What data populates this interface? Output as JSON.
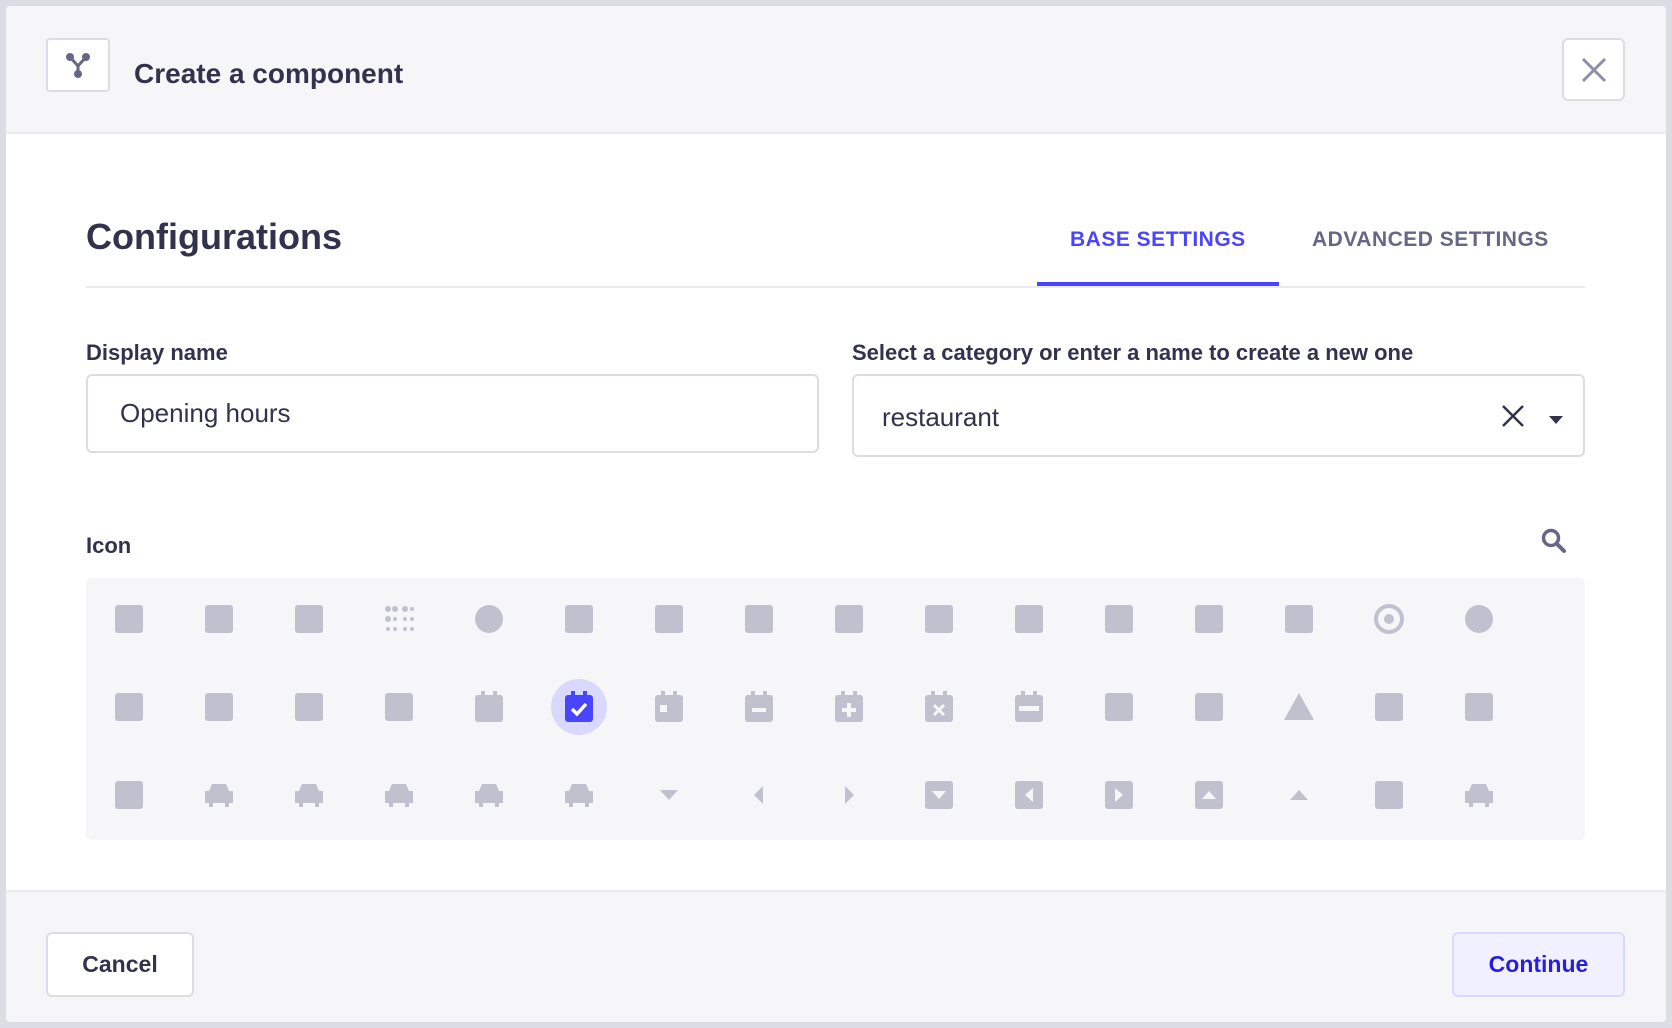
{
  "header": {
    "title": "Create a component",
    "logo_icon": "component-icon",
    "close_icon": "close-icon"
  },
  "main": {
    "section_title": "Configurations",
    "tabs": [
      {
        "label": "BASE SETTINGS",
        "active": true
      },
      {
        "label": "ADVANCED SETTINGS",
        "active": false
      }
    ],
    "display_name": {
      "label": "Display name",
      "value": "Opening hours"
    },
    "category": {
      "label": "Select a category or enter a name to create a new one",
      "value": "restaurant"
    },
    "icon_picker": {
      "label": "Icon",
      "selected": "calendar-check",
      "icons": [
        [
          "box",
          "box-open",
          "boxes",
          "braille",
          "brain",
          "bread-slice",
          "briefcase",
          "briefcase-medical",
          "broadcast-tower",
          "broom",
          "brush",
          "bug",
          "building",
          "bullhorn",
          "bullseye",
          "burn"
        ],
        [
          "bus",
          "bus-alt",
          "business-time",
          "calculator",
          "calendar",
          "calendar-check",
          "calendar-day",
          "calendar-minus",
          "calendar-plus",
          "calendar-times",
          "calendar-week",
          "camera",
          "camera-retro",
          "campground",
          "candy-cane",
          "cannabis"
        ],
        [
          "capsules",
          "car",
          "car-alt",
          "car-battery",
          "car-crash",
          "car-side",
          "caret-down",
          "caret-left",
          "caret-right",
          "caret-square-down",
          "caret-square-left",
          "caret-square-right",
          "caret-square-up",
          "caret-up",
          "carrot",
          "cart-plus"
        ]
      ]
    }
  },
  "footer": {
    "cancel_label": "Cancel",
    "continue_label": "Continue"
  },
  "colors": {
    "accent": "#4945ff",
    "icon": "#c0c0cf",
    "selected_bg": "#d9d8ff",
    "text": "#32324d"
  }
}
